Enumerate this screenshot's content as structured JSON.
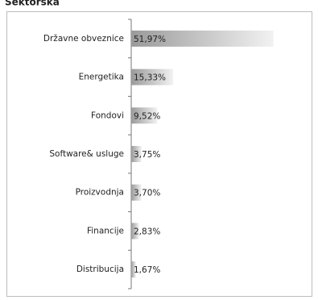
{
  "chart_data": {
    "type": "hbar",
    "title": "Sektorska",
    "categories": [
      "Državne obveznice",
      "Energetika",
      "Fondovi",
      "Software& usluge",
      "Proizvodnja",
      "Financije",
      "Distribucija"
    ],
    "values": [
      51.97,
      15.33,
      9.52,
      3.75,
      3.7,
      2.83,
      1.67
    ],
    "value_labels": [
      "51,97%",
      "15,33%",
      "9,52%",
      "3,75%",
      "3,70%",
      "2,83%",
      "1,67%"
    ],
    "xlim": [
      0,
      60
    ],
    "colors": [
      "#9a9a9a",
      "#f2f2f2"
    ],
    "title_color": "#7a2466"
  }
}
